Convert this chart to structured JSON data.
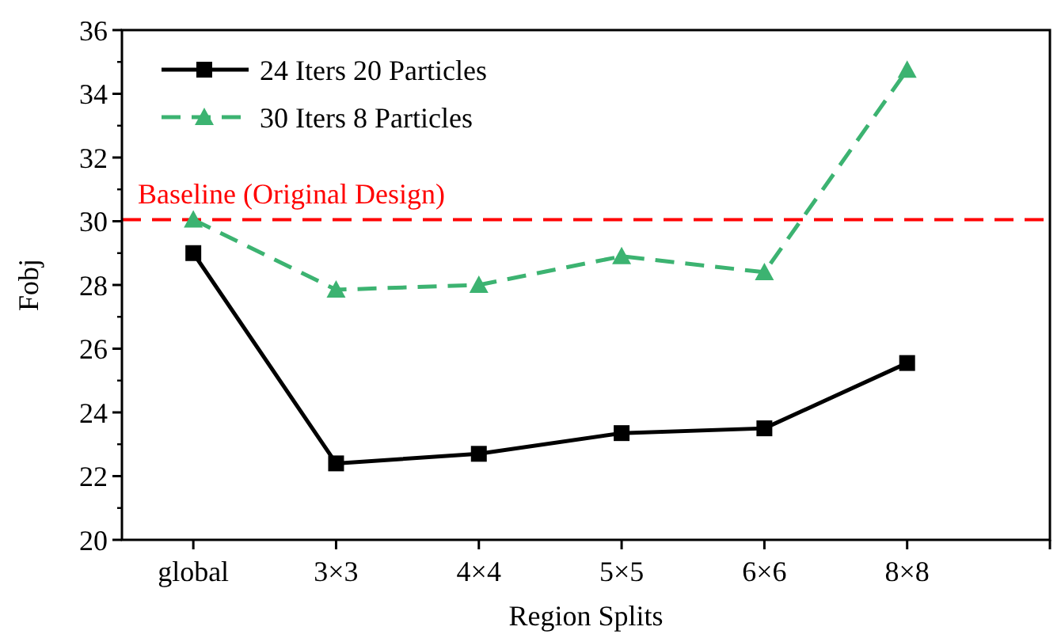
{
  "chart_data": {
    "type": "line",
    "xlabel": "Region Splits",
    "ylabel": "Fobj",
    "categories": [
      "global",
      "3×3",
      "4×4",
      "5×5",
      "6×6",
      "8×8",
      null
    ],
    "series": [
      {
        "name": "24 Iters 20 Particles",
        "color": "#000000",
        "marker": "square",
        "line_style": "solid",
        "values": [
          29.0,
          22.4,
          22.7,
          23.35,
          23.5,
          25.55,
          null
        ]
      },
      {
        "name": "30 Iters 8 Particles",
        "color": "#3cb371",
        "marker": "triangle",
        "line_style": "dashed",
        "values": [
          30.05,
          27.85,
          28.0,
          28.9,
          28.4,
          34.75,
          null
        ]
      }
    ],
    "ylim": [
      20,
      36
    ],
    "yticks": [
      20,
      22,
      24,
      26,
      28,
      30,
      32,
      34,
      36
    ],
    "grid": false,
    "legend": "top left",
    "ref_lines": [
      {
        "axis": "y",
        "value": 30.05,
        "label": "Baseline (Original Design)",
        "color": "#ff0000",
        "line_style": "dashed"
      }
    ]
  }
}
